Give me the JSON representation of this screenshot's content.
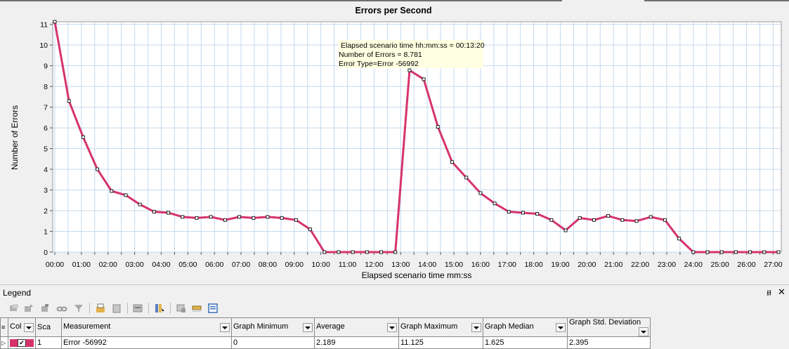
{
  "chart_data": {
    "type": "line",
    "title": "Errors per Second",
    "xlabel": "Elapsed scenario time mm:ss",
    "ylabel": "Number of Errors",
    "ylim": [
      0,
      11.125
    ],
    "yticks": [
      0,
      1,
      2,
      3,
      4,
      5,
      6,
      7,
      8,
      9,
      10,
      11
    ],
    "xticks": [
      "00:00",
      "01:00",
      "02:00",
      "03:00",
      "04:00",
      "05:00",
      "06:00",
      "07:00",
      "08:00",
      "09:00",
      "10:00",
      "11:00",
      "12:00",
      "13:00",
      "14:00",
      "15:00",
      "16:00",
      "17:00",
      "18:00",
      "19:00",
      "20:00",
      "21:00",
      "22:00",
      "23:00",
      "24:00",
      "25:00",
      "26:00",
      "27:00"
    ],
    "grid": true,
    "series": [
      {
        "name": "Error -56992",
        "color": "#d6336c",
        "points": [
          [
            "00:00",
            11.125
          ],
          [
            "00:32",
            7.3
          ],
          [
            "01:04",
            5.55
          ],
          [
            "01:36",
            4.0
          ],
          [
            "02:08",
            2.95
          ],
          [
            "02:40",
            2.75
          ],
          [
            "03:12",
            2.3
          ],
          [
            "03:44",
            1.95
          ],
          [
            "04:16",
            1.9
          ],
          [
            "04:48",
            1.7
          ],
          [
            "05:20",
            1.65
          ],
          [
            "05:52",
            1.7
          ],
          [
            "06:24",
            1.55
          ],
          [
            "06:56",
            1.7
          ],
          [
            "07:28",
            1.65
          ],
          [
            "08:00",
            1.7
          ],
          [
            "08:32",
            1.65
          ],
          [
            "09:04",
            1.55
          ],
          [
            "09:36",
            1.1
          ],
          [
            "10:08",
            0
          ],
          [
            "10:40",
            0
          ],
          [
            "11:12",
            0
          ],
          [
            "11:44",
            0
          ],
          [
            "12:16",
            0
          ],
          [
            "12:48",
            0
          ],
          [
            "13:20",
            8.781
          ],
          [
            "13:52",
            8.35
          ],
          [
            "14:24",
            6.05
          ],
          [
            "14:56",
            4.35
          ],
          [
            "15:28",
            3.6
          ],
          [
            "16:00",
            2.85
          ],
          [
            "16:32",
            2.35
          ],
          [
            "17:04",
            1.95
          ],
          [
            "17:36",
            1.9
          ],
          [
            "18:08",
            1.85
          ],
          [
            "18:40",
            1.55
          ],
          [
            "19:12",
            1.05
          ],
          [
            "19:44",
            1.65
          ],
          [
            "20:16",
            1.55
          ],
          [
            "20:48",
            1.75
          ],
          [
            "21:20",
            1.55
          ],
          [
            "21:52",
            1.5
          ],
          [
            "22:24",
            1.7
          ],
          [
            "22:56",
            1.55
          ],
          [
            "23:28",
            0.65
          ],
          [
            "24:00",
            0
          ],
          [
            "24:32",
            0
          ],
          [
            "25:04",
            0
          ],
          [
            "25:36",
            0
          ],
          [
            "26:08",
            0
          ],
          [
            "26:40",
            0
          ],
          [
            "27:12",
            0
          ]
        ]
      }
    ],
    "tooltip": {
      "line1": "Elapsed scenario time hh:mm:ss = 00:13:20",
      "line2": "Number of Errors = 8.781",
      "line3": "Error Type=Error -56992"
    }
  },
  "legend": {
    "title": "Legend",
    "pin_glyph": "⭿",
    "close_glyph": "✕",
    "columns": [
      "Col",
      "Sca",
      "Measurement",
      "Graph Minimum",
      "Average",
      "Graph Maximum",
      "Graph Median",
      "Graph Std. Deviation"
    ],
    "rows": [
      {
        "color": "#d6336c",
        "checked": true,
        "scale": "1",
        "measurement": "Error -56992",
        "graph_minimum": "0",
        "average": "2.189",
        "graph_maximum": "11.125",
        "graph_median": "1.625",
        "graph_std_deviation": "2.395"
      }
    ]
  }
}
